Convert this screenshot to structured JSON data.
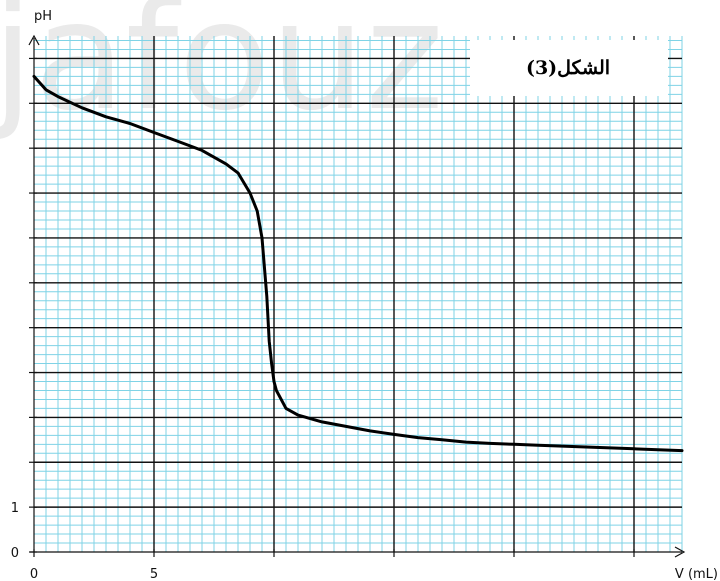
{
  "watermark": "jafouz",
  "figure_label": "الشكل(3)",
  "colors": {
    "minor_grid": "#7fd3e6",
    "major_grid": "#111111",
    "curve": "#000000",
    "background": "#ffffff"
  },
  "chart_data": {
    "type": "line",
    "title": "",
    "xlabel": "V (mL)",
    "ylabel": "pH",
    "xlim": [
      0,
      27
    ],
    "ylim": [
      0,
      11.5
    ],
    "x_tick_labels": [
      {
        "value": 0,
        "label": "0"
      },
      {
        "value": 5,
        "label": "5"
      }
    ],
    "y_tick_labels": [
      {
        "value": 0,
        "label": "0"
      },
      {
        "value": 1,
        "label": "1"
      }
    ],
    "major_grid_x": 5,
    "major_grid_y": 1,
    "minor_grid_x": 0.5,
    "minor_grid_y": 0.2,
    "grid": true,
    "series": [
      {
        "x": [
          0,
          0.5,
          1,
          2,
          3,
          4,
          5,
          6,
          7,
          8,
          8.5,
          9,
          9.3,
          9.5,
          9.7,
          9.8,
          9.9,
          10,
          10.1,
          10.3,
          10.5,
          11,
          12,
          13,
          14,
          15,
          16,
          17,
          18,
          19,
          20,
          21,
          22,
          23,
          24,
          25,
          26,
          27
        ],
        "y": [
          10.6,
          10.3,
          10.15,
          9.9,
          9.7,
          9.55,
          9.35,
          9.15,
          8.95,
          8.65,
          8.45,
          8.0,
          7.6,
          7.0,
          5.7,
          4.7,
          4.2,
          3.8,
          3.6,
          3.4,
          3.2,
          3.05,
          2.9,
          2.8,
          2.7,
          2.62,
          2.55,
          2.5,
          2.45,
          2.42,
          2.4,
          2.38,
          2.36,
          2.34,
          2.32,
          2.3,
          2.28,
          2.26
        ]
      }
    ]
  }
}
